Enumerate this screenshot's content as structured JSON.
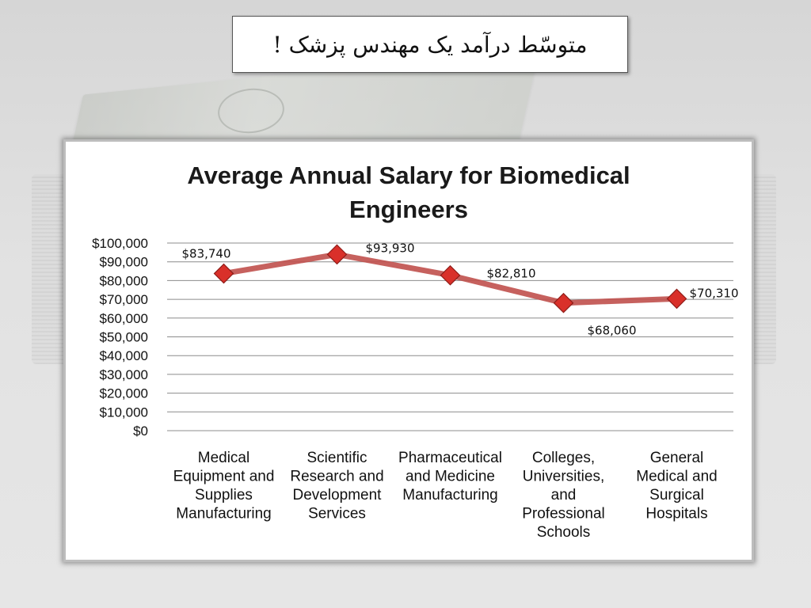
{
  "slide": {
    "title": "متوسّط درآمد یک مهندس پزشک !"
  },
  "colors": {
    "line": "#c0504d",
    "marker": "#d9302a",
    "gridline": "#8c8c8c",
    "frame_border": "#bdbdbd"
  },
  "chart_data": {
    "type": "line",
    "title": "Average Annual Salary for Biomedical Engineers",
    "title_lines": [
      "Average Annual Salary for Biomedical",
      "Engineers"
    ],
    "xlabel": "",
    "ylabel": "",
    "ylim": [
      0,
      100000
    ],
    "y_ticks": [
      "$0",
      "$10,000",
      "$20,000",
      "$30,000",
      "$40,000",
      "$50,000",
      "$60,000",
      "$70,000",
      "$80,000",
      "$90,000",
      "$100,000"
    ],
    "grid": true,
    "legend": "none",
    "categories": [
      "Medical Equipment and Supplies Manufacturing",
      "Scientific Research and Development Services",
      "Pharmaceutical and Medicine Manufacturing",
      "Colleges, Universities, and Professional Schools",
      "General Medical and Surgical Hospitals"
    ],
    "category_lines": [
      [
        "Medical",
        "Equipment and",
        "Supplies",
        "Manufacturing"
      ],
      [
        "Scientific",
        "Research and",
        "Development",
        "Services"
      ],
      [
        "Pharmaceutical",
        "and Medicine",
        "Manufacturing"
      ],
      [
        "Colleges,",
        "Universities,",
        "and",
        "Professional",
        "Schools"
      ],
      [
        "General",
        "Medical and",
        "Surgical",
        "Hospitals"
      ]
    ],
    "values": [
      83740,
      93930,
      82810,
      68060,
      70310
    ],
    "data_labels": [
      "$83,740",
      "$93,930",
      "$82,810",
      "$68,060",
      "$70,310"
    ],
    "marker": "diamond"
  }
}
